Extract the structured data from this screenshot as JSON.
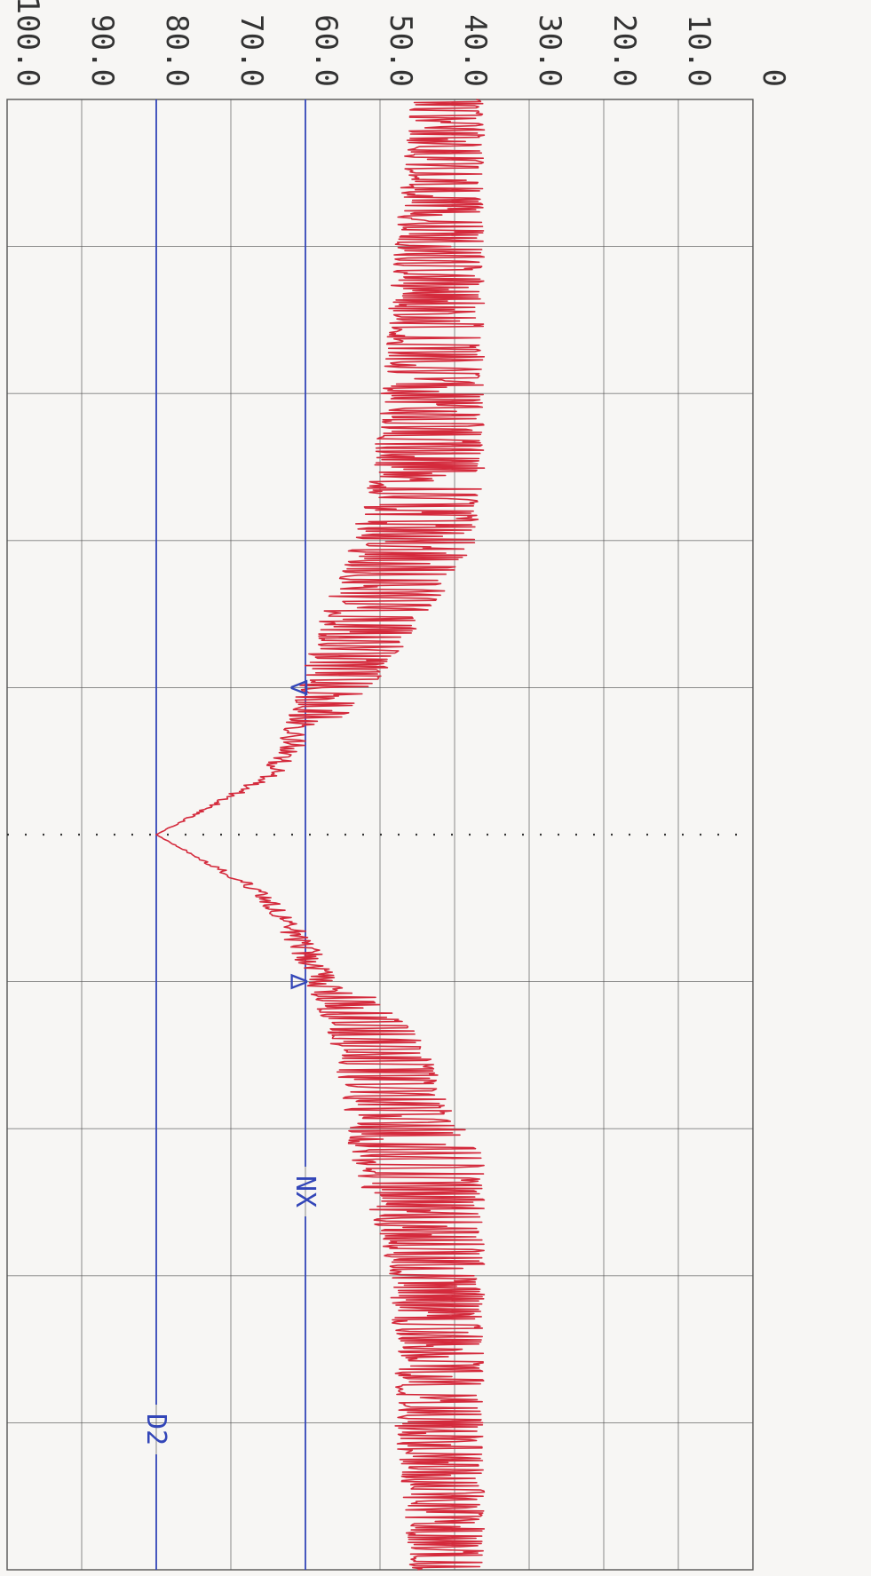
{
  "chart_data": {
    "type": "line",
    "title": "",
    "xlabel": "",
    "ylabel": "",
    "orientation": "rotated-90-clockwise",
    "ylim": [
      0,
      100
    ],
    "y_ticks": [
      "0",
      "10.0",
      "20.0",
      "30.0",
      "40.0",
      "50.0",
      "60.0",
      "70.0",
      "80.0",
      "90.0",
      "100.0"
    ],
    "x_divisions": 10,
    "grid": true,
    "center_marker": "dotted",
    "colors": {
      "trace": "#d42a3c",
      "reference": "#3346b8",
      "grid": "#555555",
      "background": "#f7f6f4"
    },
    "reference_lines": [
      {
        "label": "D2",
        "value": 80
      },
      {
        "label": "NX",
        "value": 60
      }
    ],
    "markers": [
      {
        "glyph": "∇",
        "x": 4.0,
        "y": 61
      },
      {
        "glyph": "∆",
        "x": 6.0,
        "y": 61
      }
    ],
    "series": [
      {
        "envelope": [
          [
            0.0,
            36,
            46
          ],
          [
            0.5,
            36,
            47
          ],
          [
            1.0,
            36,
            48
          ],
          [
            1.5,
            36,
            49
          ],
          [
            2.0,
            36,
            50
          ],
          [
            2.5,
            36,
            51
          ],
          [
            3.0,
            37,
            54
          ],
          [
            3.4,
            42,
            57
          ],
          [
            3.8,
            48,
            60
          ],
          [
            4.0,
            51,
            61
          ],
          [
            4.3,
            56,
            63
          ],
          [
            4.6,
            62,
            66
          ],
          [
            5.0,
            80,
            80
          ],
          [
            5.4,
            63,
            67
          ],
          [
            5.7,
            57,
            63
          ],
          [
            6.0,
            53,
            60
          ],
          [
            6.4,
            44,
            57
          ],
          [
            6.8,
            41,
            55
          ],
          [
            7.2,
            36,
            54
          ],
          [
            7.6,
            36,
            51
          ],
          [
            8.0,
            36,
            49
          ],
          [
            8.5,
            36,
            48
          ],
          [
            9.0,
            36,
            48
          ],
          [
            9.5,
            36,
            47
          ],
          [
            10.0,
            36,
            46
          ]
        ]
      }
    ]
  }
}
